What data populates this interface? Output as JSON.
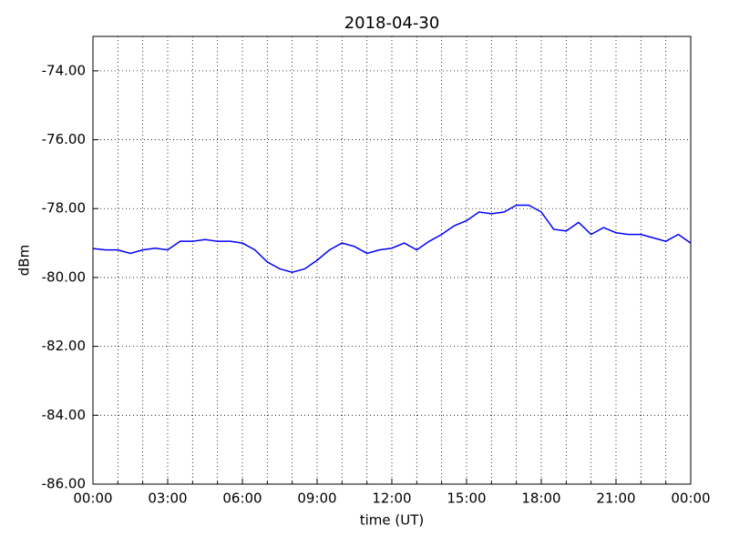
{
  "chart_data": {
    "type": "line",
    "title": "2018-04-30",
    "xlabel": "time (UT)",
    "ylabel": "dBm",
    "x": [
      0,
      0.5,
      1,
      1.5,
      2,
      2.5,
      3,
      3.5,
      4,
      4.5,
      5,
      5.5,
      6,
      6.5,
      7,
      7.5,
      8,
      8.5,
      9,
      9.5,
      10,
      10.5,
      11,
      11.5,
      12,
      12.5,
      13,
      13.5,
      14,
      14.5,
      15,
      15.5,
      16,
      16.5,
      17,
      17.5,
      18,
      18.5,
      19,
      19.5,
      20,
      20.5,
      21,
      21.5,
      22,
      22.5,
      23,
      23.5,
      24
    ],
    "series": [
      {
        "name": "dBm",
        "color": "#0000ff",
        "values": [
          -79.16,
          -79.2,
          -79.2,
          -79.3,
          -79.2,
          -79.15,
          -79.2,
          -78.95,
          -78.95,
          -78.9,
          -78.95,
          -78.95,
          -79.0,
          -79.2,
          -79.55,
          -79.75,
          -79.85,
          -79.75,
          -79.5,
          -79.2,
          -79.0,
          -79.1,
          -79.3,
          -79.2,
          -79.15,
          -79.0,
          -79.2,
          -78.95,
          -78.75,
          -78.5,
          -78.35,
          -78.1,
          -78.15,
          -78.1,
          -77.9,
          -77.9,
          -78.1,
          -78.6,
          -78.65,
          -78.4,
          -78.75,
          -78.55,
          -78.7,
          -78.75,
          -78.75,
          -78.85,
          -78.95,
          -78.75,
          -79.0
        ]
      }
    ],
    "xlim": [
      0,
      24
    ],
    "xticks": [
      {
        "value": 0,
        "label": "00:00"
      },
      {
        "value": 3,
        "label": "03:00"
      },
      {
        "value": 6,
        "label": "06:00"
      },
      {
        "value": 9,
        "label": "09:00"
      },
      {
        "value": 12,
        "label": "12:00"
      },
      {
        "value": 15,
        "label": "15:00"
      },
      {
        "value": 18,
        "label": "18:00"
      },
      {
        "value": 21,
        "label": "21:00"
      },
      {
        "value": 24,
        "label": "00:00"
      }
    ],
    "xminorticks": [
      1,
      2,
      4,
      5,
      7,
      8,
      10,
      11,
      13,
      14,
      16,
      17,
      19,
      20,
      22,
      23
    ],
    "ylim": [
      -86,
      -73
    ],
    "yticks": [
      {
        "value": -86,
        "label": "-86.00"
      },
      {
        "value": -84,
        "label": "-84.00"
      },
      {
        "value": -82,
        "label": "-82.00"
      },
      {
        "value": -80,
        "label": "-80.00"
      },
      {
        "value": -78,
        "label": "-78.00"
      },
      {
        "value": -76,
        "label": "-76.00"
      },
      {
        "value": -74,
        "label": "-74.00"
      }
    ],
    "grid": true
  }
}
